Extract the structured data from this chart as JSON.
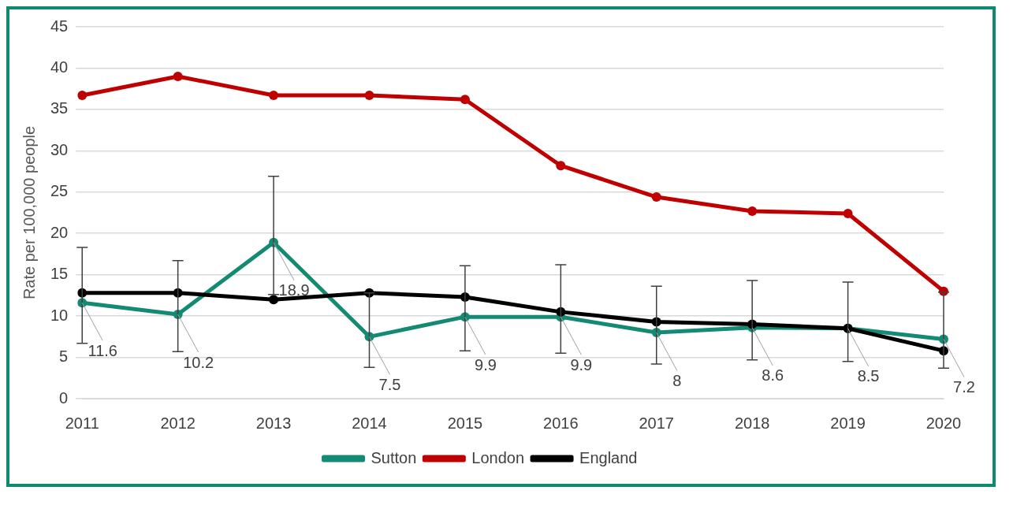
{
  "chart_data": {
    "type": "line",
    "ylabel": "Rate per 100,000 people",
    "categories": [
      "2011",
      "2012",
      "2013",
      "2014",
      "2015",
      "2016",
      "2017",
      "2018",
      "2019",
      "2020"
    ],
    "ylim": [
      0,
      45
    ],
    "yticks": [
      0,
      5,
      10,
      15,
      20,
      25,
      30,
      35,
      40,
      45
    ],
    "grid": "y",
    "legend": "bottom",
    "marker": "circle",
    "line_style": "solid",
    "series": [
      {
        "name": "Sutton",
        "color": "#138a72",
        "values": [
          11.6,
          10.2,
          18.9,
          7.5,
          9.9,
          9.9,
          8,
          8.6,
          8.5,
          7.2
        ],
        "value_labels": [
          "11.6",
          "10.2",
          "18.9",
          "7.5",
          "9.9",
          "9.9",
          "8",
          "8.6",
          "8.5",
          "7.2"
        ],
        "errors": [
          [
            6.7,
            18.3
          ],
          [
            5.7,
            16.7
          ],
          [
            12.6,
            26.9
          ],
          [
            3.8,
            12.8
          ],
          [
            5.8,
            16.1
          ],
          [
            5.5,
            16.2
          ],
          [
            4.2,
            13.6
          ],
          [
            4.7,
            14.3
          ],
          [
            4.5,
            14.1
          ],
          [
            3.7,
            12.9
          ]
        ]
      },
      {
        "name": "London",
        "color": "#c00000",
        "values": [
          36.7,
          39,
          36.7,
          36.7,
          36.2,
          28.2,
          24.4,
          22.7,
          22.4,
          13
        ]
      },
      {
        "name": "England",
        "color": "#000000",
        "values": [
          12.8,
          12.8,
          12,
          12.8,
          12.3,
          10.5,
          9.3,
          9,
          8.5,
          5.8
        ]
      }
    ]
  }
}
